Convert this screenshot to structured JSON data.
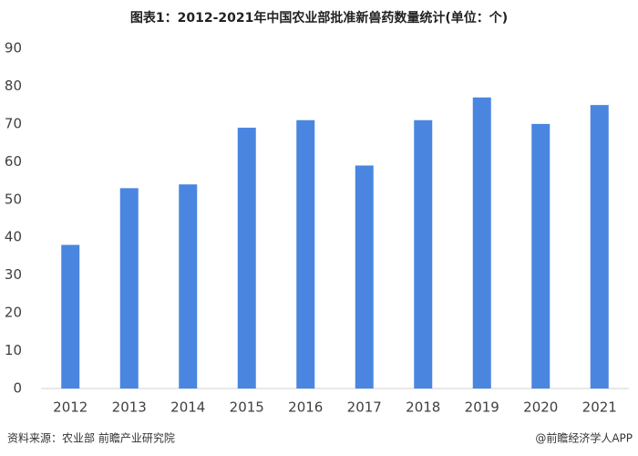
{
  "chart_data": {
    "type": "bar",
    "title": "图表1：2012-2021年中国农业部批准新兽药数量统计(单位：个)",
    "categories": [
      "2012",
      "2013",
      "2014",
      "2015",
      "2016",
      "2017",
      "2018",
      "2019",
      "2020",
      "2021"
    ],
    "values": [
      38,
      53,
      54,
      69,
      71,
      59,
      71,
      77,
      70,
      75
    ],
    "color": "#4a86e0",
    "ylim": [
      0,
      90
    ],
    "yticks": [
      0,
      10,
      20,
      30,
      40,
      50,
      60,
      70,
      80,
      90
    ],
    "grid": false,
    "source": "资料来源：农业部 前瞻产业研究院",
    "credit": "@前瞻经济学人APP"
  }
}
